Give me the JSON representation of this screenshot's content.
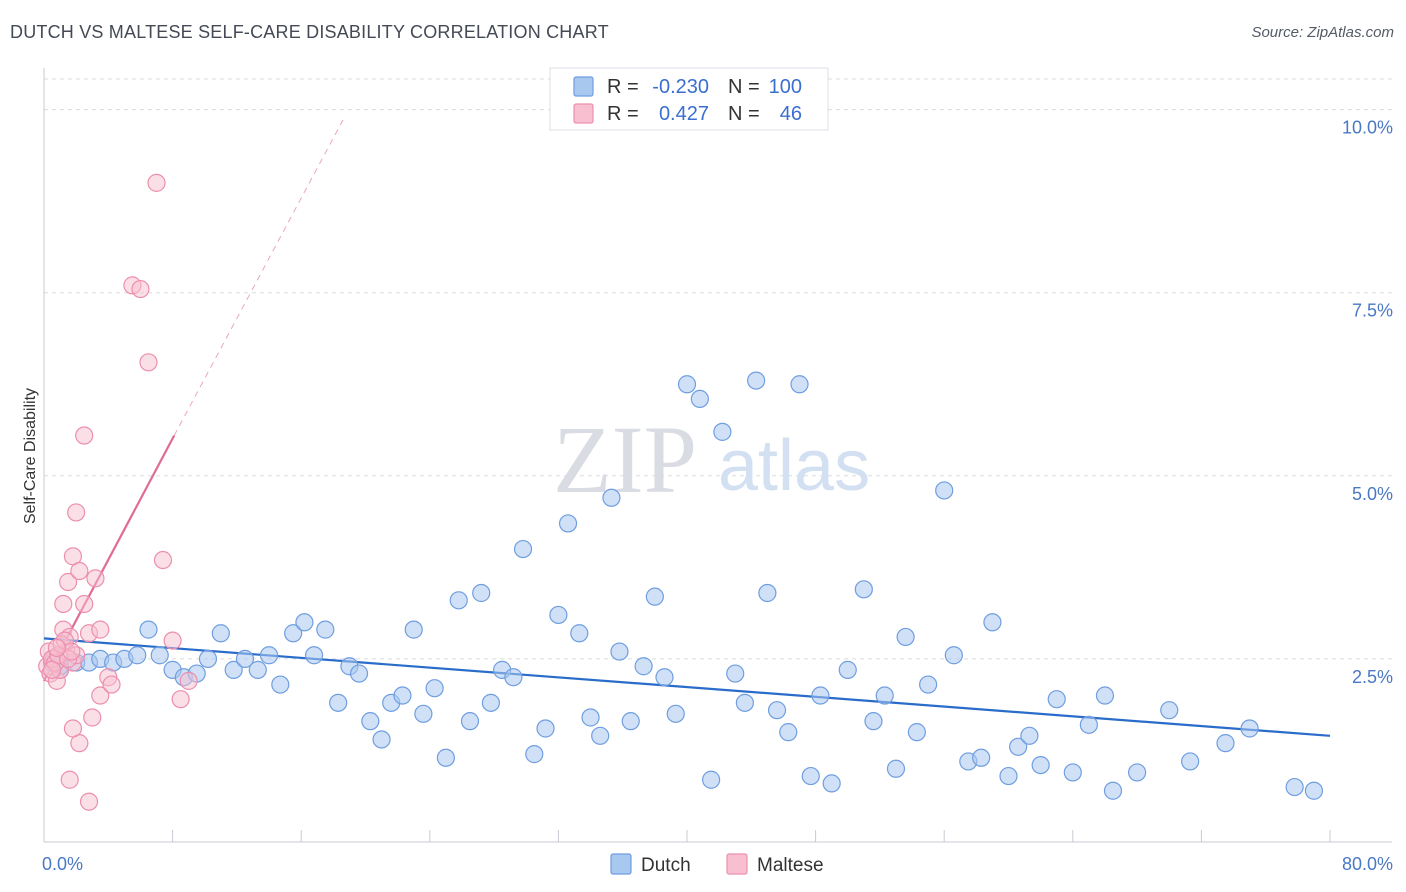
{
  "header": {
    "title": "DUTCH VS MALTESE SELF-CARE DISABILITY CORRELATION CHART",
    "source": "Source: ZipAtlas.com"
  },
  "watermark": {
    "zip": "ZIP",
    "atlas": "atlas"
  },
  "colors": {
    "dutch_fill": "#a9c8f0",
    "dutch_stroke": "#6f9ee0",
    "dutch_line": "#2a6cc9",
    "maltese_fill": "#f7bfd0",
    "maltese_stroke": "#ec8fae",
    "maltese_line": "#e06b96",
    "axis_tick": "#4a78c4",
    "grid": "#d8dbe0"
  },
  "legend": {
    "rows": [
      {
        "r_label": "R =",
        "r_value": "-0.230",
        "n_label": "N =",
        "n_value": "100"
      },
      {
        "r_label": "R =",
        "r_value": "0.427",
        "n_label": "N =",
        "n_value": "46"
      }
    ]
  },
  "bottom_legend": {
    "dutch": "Dutch",
    "maltese": "Maltese"
  },
  "chart_data": {
    "type": "scatter",
    "ylabel": "Self-Care Disability",
    "xlim": [
      0,
      80
    ],
    "ylim": [
      0,
      10.5
    ],
    "x_tick_labels": [
      {
        "value": 0,
        "label": "0.0%"
      },
      {
        "value": 80,
        "label": "80.0%"
      }
    ],
    "y_tick_labels": [
      {
        "value": 2.5,
        "label": "2.5%"
      },
      {
        "value": 5.0,
        "label": "5.0%"
      },
      {
        "value": 7.5,
        "label": "7.5%"
      },
      {
        "value": 10.0,
        "label": "10.0%"
      }
    ],
    "grid": true,
    "legend_position": "top-center",
    "series": [
      {
        "name": "Dutch",
        "r": -0.23,
        "n": 100,
        "trend": {
          "x": [
            0,
            80
          ],
          "y": [
            2.78,
            1.45
          ]
        },
        "points": [
          [
            1.0,
            2.35
          ],
          [
            0.5,
            2.45
          ],
          [
            1.0,
            2.4
          ],
          [
            2.0,
            2.45
          ],
          [
            2.8,
            2.45
          ],
          [
            3.5,
            2.5
          ],
          [
            4.3,
            2.45
          ],
          [
            5.0,
            2.5
          ],
          [
            5.8,
            2.55
          ],
          [
            6.5,
            2.9
          ],
          [
            7.2,
            2.55
          ],
          [
            8.0,
            2.35
          ],
          [
            8.7,
            2.25
          ],
          [
            9.5,
            2.3
          ],
          [
            10.2,
            2.5
          ],
          [
            11.0,
            2.85
          ],
          [
            11.8,
            2.35
          ],
          [
            12.5,
            2.5
          ],
          [
            13.3,
            2.35
          ],
          [
            14.0,
            2.55
          ],
          [
            14.7,
            2.15
          ],
          [
            15.5,
            2.85
          ],
          [
            16.2,
            3.0
          ],
          [
            16.8,
            2.55
          ],
          [
            17.5,
            2.9
          ],
          [
            18.3,
            1.9
          ],
          [
            19.0,
            2.4
          ],
          [
            19.6,
            2.3
          ],
          [
            20.3,
            1.65
          ],
          [
            21.0,
            1.4
          ],
          [
            21.6,
            1.9
          ],
          [
            22.3,
            2.0
          ],
          [
            23.0,
            2.9
          ],
          [
            23.6,
            1.75
          ],
          [
            24.3,
            2.1
          ],
          [
            25.0,
            1.15
          ],
          [
            25.8,
            3.3
          ],
          [
            26.5,
            1.65
          ],
          [
            27.2,
            3.4
          ],
          [
            27.8,
            1.9
          ],
          [
            28.5,
            2.35
          ],
          [
            29.2,
            2.25
          ],
          [
            29.8,
            4.0
          ],
          [
            30.5,
            1.2
          ],
          [
            31.2,
            1.55
          ],
          [
            32.0,
            3.1
          ],
          [
            32.6,
            4.35
          ],
          [
            33.3,
            2.85
          ],
          [
            34.0,
            1.7
          ],
          [
            34.6,
            1.45
          ],
          [
            35.3,
            4.7
          ],
          [
            35.8,
            2.6
          ],
          [
            36.5,
            1.65
          ],
          [
            37.3,
            2.4
          ],
          [
            38.0,
            3.35
          ],
          [
            38.6,
            2.25
          ],
          [
            39.3,
            1.75
          ],
          [
            40.0,
            6.25
          ],
          [
            40.8,
            6.05
          ],
          [
            41.5,
            0.85
          ],
          [
            42.2,
            5.6
          ],
          [
            43.0,
            2.3
          ],
          [
            43.6,
            1.9
          ],
          [
            44.3,
            6.3
          ],
          [
            45.0,
            3.4
          ],
          [
            45.6,
            1.8
          ],
          [
            46.3,
            1.5
          ],
          [
            47.0,
            6.25
          ],
          [
            47.7,
            0.9
          ],
          [
            48.3,
            2.0
          ],
          [
            49.0,
            0.8
          ],
          [
            50.0,
            2.35
          ],
          [
            51.0,
            3.45
          ],
          [
            51.6,
            1.65
          ],
          [
            52.3,
            2.0
          ],
          [
            53.0,
            1.0
          ],
          [
            53.6,
            2.8
          ],
          [
            54.3,
            1.5
          ],
          [
            55.0,
            2.15
          ],
          [
            56.0,
            4.8
          ],
          [
            56.6,
            2.55
          ],
          [
            57.5,
            1.1
          ],
          [
            58.3,
            1.15
          ],
          [
            59.0,
            3.0
          ],
          [
            60.0,
            0.9
          ],
          [
            60.6,
            1.3
          ],
          [
            61.3,
            1.45
          ],
          [
            62.0,
            1.05
          ],
          [
            63.0,
            1.95
          ],
          [
            64.0,
            0.95
          ],
          [
            65.0,
            1.6
          ],
          [
            66.0,
            2.0
          ],
          [
            66.5,
            0.7
          ],
          [
            68.0,
            0.95
          ],
          [
            70.0,
            1.8
          ],
          [
            71.3,
            1.1
          ],
          [
            73.5,
            1.35
          ],
          [
            75.0,
            1.55
          ],
          [
            77.8,
            0.75
          ],
          [
            79.0,
            0.7
          ]
        ]
      },
      {
        "name": "Maltese",
        "r": 0.427,
        "n": 46,
        "trend": {
          "x": [
            0,
            8.1
          ],
          "y": [
            2.2,
            5.55
          ]
        },
        "trend_extension": {
          "x": [
            8.1,
            18.7
          ],
          "y": [
            5.55,
            9.9
          ]
        },
        "points": [
          [
            0.2,
            2.4
          ],
          [
            0.4,
            2.3
          ],
          [
            0.6,
            2.5
          ],
          [
            0.8,
            2.2
          ],
          [
            1.0,
            2.35
          ],
          [
            1.2,
            2.9
          ],
          [
            1.4,
            2.6
          ],
          [
            1.6,
            2.8
          ],
          [
            1.8,
            2.45
          ],
          [
            2.0,
            2.55
          ],
          [
            0.3,
            2.6
          ],
          [
            0.5,
            2.5
          ],
          [
            0.7,
            2.45
          ],
          [
            0.9,
            2.55
          ],
          [
            1.1,
            2.7
          ],
          [
            1.3,
            2.75
          ],
          [
            1.5,
            2.5
          ],
          [
            1.7,
            2.6
          ],
          [
            0.5,
            2.35
          ],
          [
            0.8,
            2.65
          ],
          [
            1.2,
            3.25
          ],
          [
            1.5,
            3.55
          ],
          [
            1.8,
            3.9
          ],
          [
            2.2,
            3.7
          ],
          [
            2.5,
            3.25
          ],
          [
            2.8,
            2.85
          ],
          [
            3.2,
            3.6
          ],
          [
            3.5,
            2.9
          ],
          [
            4.0,
            2.25
          ],
          [
            3.0,
            1.7
          ],
          [
            2.5,
            5.55
          ],
          [
            2.0,
            4.5
          ],
          [
            2.2,
            1.35
          ],
          [
            1.8,
            1.55
          ],
          [
            1.6,
            0.85
          ],
          [
            2.8,
            0.55
          ],
          [
            3.5,
            2.0
          ],
          [
            4.2,
            2.15
          ],
          [
            5.5,
            7.6
          ],
          [
            6.0,
            7.55
          ],
          [
            6.5,
            6.55
          ],
          [
            7.0,
            9.0
          ],
          [
            7.4,
            3.85
          ],
          [
            8.0,
            2.75
          ],
          [
            8.5,
            1.95
          ],
          [
            9.0,
            2.2
          ]
        ]
      }
    ]
  }
}
